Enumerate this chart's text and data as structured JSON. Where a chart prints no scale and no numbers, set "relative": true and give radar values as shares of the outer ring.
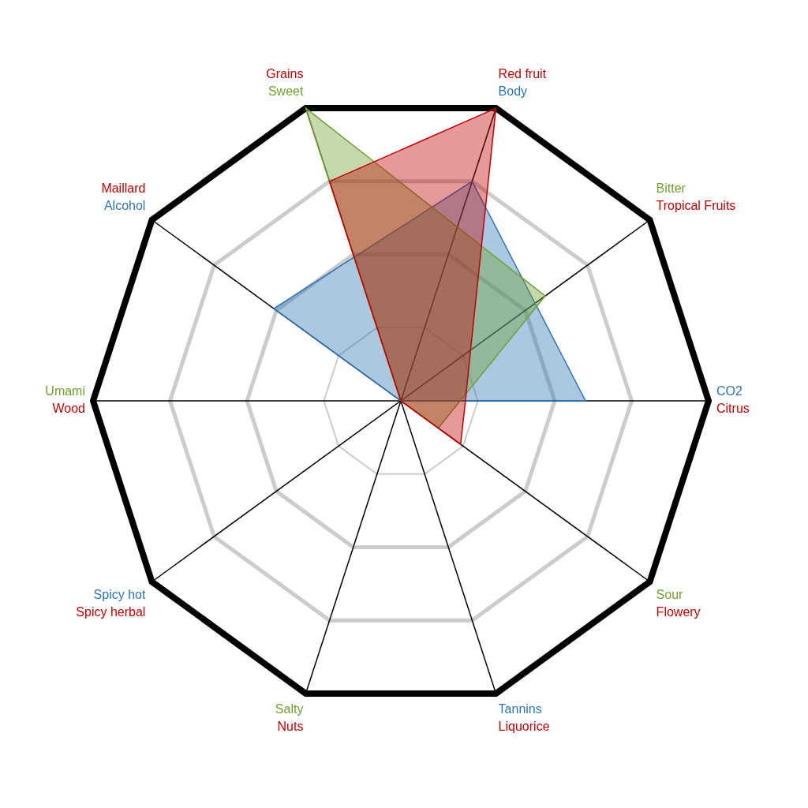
{
  "chart_data": {
    "type": "radar",
    "relative": true,
    "categories": [
      "Red fruit",
      "Tropical Fruits",
      "Citrus",
      "Flowery",
      "Liquorice",
      "Nuts",
      "Spicy herbal",
      "Wood",
      "Maillard",
      "Grains"
    ],
    "series": [
      {
        "color": "#c00000",
        "values": [
          1.0,
          0.28,
          0.21,
          0.24,
          0,
          0,
          0,
          0,
          0,
          0.75
        ]
      },
      {
        "color": "#70a030",
        "values": [
          null,
          0.58,
          null,
          0.15,
          null,
          0,
          null,
          0,
          null,
          1.0
        ]
      },
      {
        "color": "#2e75b6",
        "values": [
          0.75,
          null,
          0.6,
          null,
          0,
          null,
          0,
          null,
          0.51,
          null
        ]
      }
    ],
    "annotations": [
      {
        "text": "Body",
        "x": "Red fruit"
      },
      {
        "text": "Bitter",
        "x": "Tropical Fruits"
      },
      {
        "text": "CO2",
        "x": "Citrus"
      },
      {
        "text": "Sour",
        "x": "Flowery"
      },
      {
        "text": "Tannins",
        "x": "Liquorice"
      },
      {
        "text": "Salty",
        "x": "Nuts"
      },
      {
        "text": "Spicy hot",
        "x": "Spicy herbal"
      },
      {
        "text": "Umami",
        "x": "Wood"
      },
      {
        "text": "Alcohol",
        "x": "Maillard"
      },
      {
        "text": "Sweet",
        "x": "Grains"
      }
    ]
  }
}
